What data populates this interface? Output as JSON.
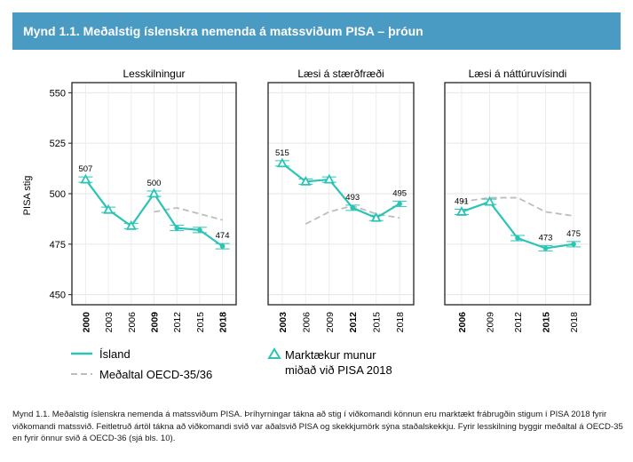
{
  "header": {
    "title": "Mynd 1.1. Meðalstig íslenskra nemenda á matssviðum PISA – þróun"
  },
  "caption": "Mynd 1.1. Meðalstig íslenskra nemenda á matssviðum PISA. Þríhyrningar tákna að stig í viðkomandi könnun eru marktækt frábrugðin stigum í PISA 2018 fyrir viðkomandi matssvið. Feitletruð ártöl tákna að viðkomandi svið var aðalsvið PISA og skekkjumörk sýna staðalskekkju. Fyrir lesskilning byggir meðaltal á OECD-35 en fyrir önnur svið á OECD-36 (sjá bls. 10).",
  "legend": {
    "iceland": "Ísland",
    "oecd": "Meðaltal OECD-35/36",
    "sig_line1": "Marktækur munur",
    "sig_line2": "miðað við PISA 2018"
  },
  "colors": {
    "iceland": "#2cc4b4",
    "oecd": "#bdbdbd",
    "title_bar": "#4a9bc3"
  },
  "chart_data": {
    "type": "line",
    "ylabel": "PISA stig",
    "ylim": [
      445,
      555
    ],
    "yticks": [
      450,
      475,
      500,
      525,
      550
    ],
    "grid": true,
    "legend_position": "bottom",
    "panels": [
      {
        "title": "Lesskilningur",
        "x": [
          "2000",
          "2003",
          "2006",
          "2009",
          "2012",
          "2015",
          "2018"
        ],
        "bold_years": [
          "2000",
          "2009",
          "2018"
        ],
        "series": [
          {
            "name": "Ísland",
            "values": [
              507,
              492,
              484,
              500,
              483,
              482,
              474
            ],
            "labels": [
              "507",
              "",
              "",
              "500",
              "",
              "",
              "474"
            ],
            "significant": [
              true,
              true,
              true,
              true,
              false,
              false,
              false
            ],
            "error_bars": [
              true,
              true,
              true,
              true,
              true,
              true,
              true
            ]
          },
          {
            "name": "Meðaltal OECD-35/36",
            "values": [
              null,
              null,
              null,
              491,
              493,
              490,
              487
            ]
          }
        ]
      },
      {
        "title": "Læsi á stærðfræði",
        "x": [
          "2003",
          "2006",
          "2009",
          "2012",
          "2015",
          "2018"
        ],
        "bold_years": [
          "2003",
          "2012"
        ],
        "series": [
          {
            "name": "Ísland",
            "values": [
              515,
              506,
              507,
              493,
              488,
              495
            ],
            "labels": [
              "515",
              "",
              "",
              "493",
              "",
              "495"
            ],
            "significant": [
              true,
              true,
              true,
              false,
              true,
              false
            ],
            "error_bars": [
              true,
              true,
              true,
              true,
              true,
              true
            ]
          },
          {
            "name": "Meðaltal OECD-35/36",
            "values": [
              null,
              485,
              491,
              494,
              490,
              488
            ]
          }
        ]
      },
      {
        "title": "Læsi á náttúruvísindi",
        "x": [
          "2006",
          "2009",
          "2012",
          "2015",
          "2018"
        ],
        "bold_years": [
          "2006",
          "2015"
        ],
        "series": [
          {
            "name": "Ísland",
            "values": [
              491,
              496,
              478,
              473,
              475
            ],
            "labels": [
              "491",
              "",
              "",
              "473",
              "475"
            ],
            "significant": [
              true,
              true,
              false,
              false,
              false
            ],
            "error_bars": [
              true,
              true,
              true,
              true,
              true
            ]
          },
          {
            "name": "Meðaltal OECD-35/36",
            "values": [
              496,
              498,
              498,
              491,
              489
            ]
          }
        ]
      }
    ]
  }
}
